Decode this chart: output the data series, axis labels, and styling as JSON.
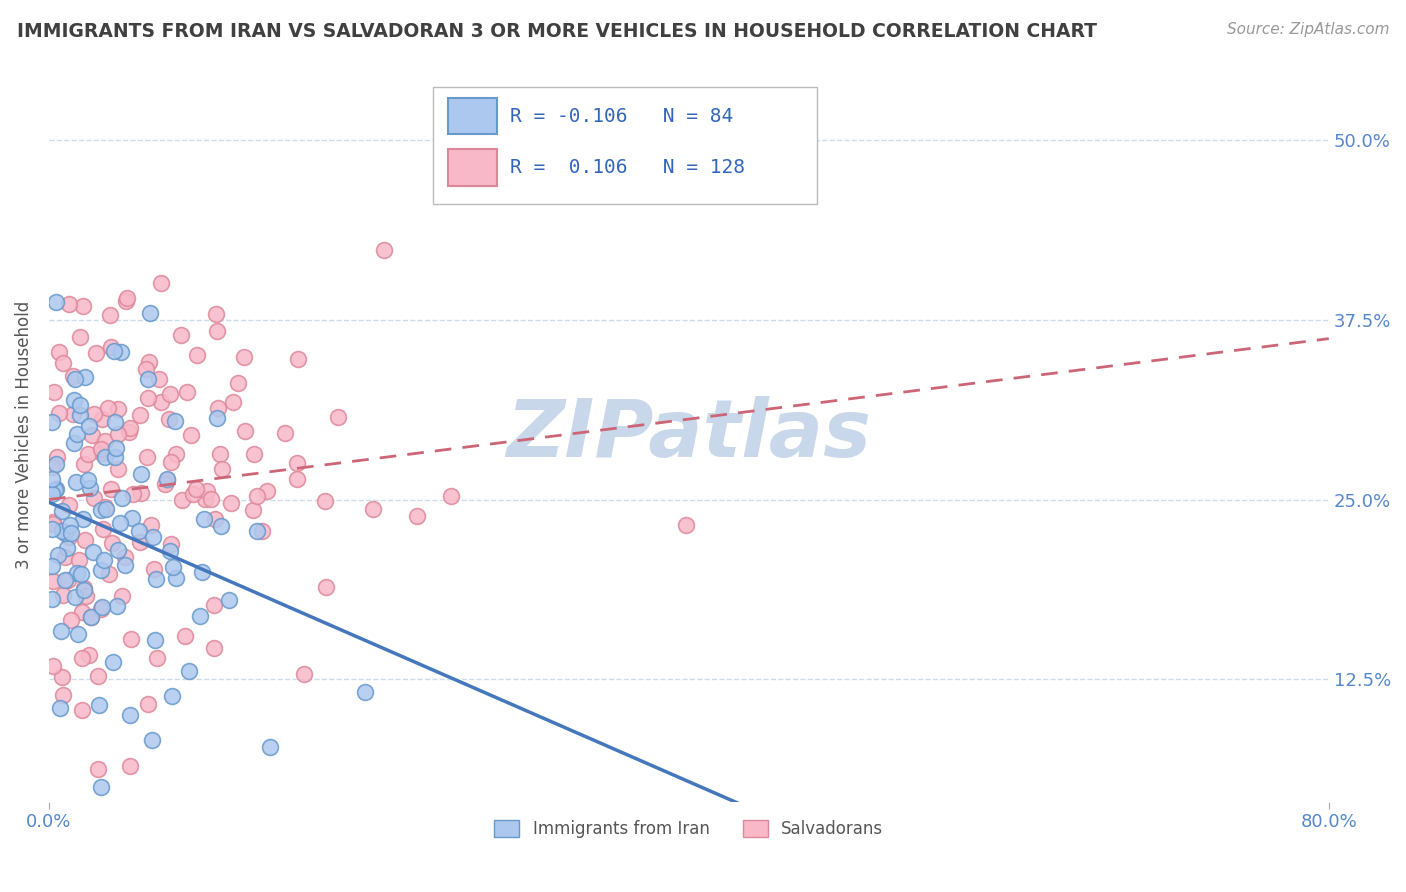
{
  "title": "IMMIGRANTS FROM IRAN VS SALVADORAN 3 OR MORE VEHICLES IN HOUSEHOLD CORRELATION CHART",
  "source_text": "Source: ZipAtlas.com",
  "ylabel": "3 or more Vehicles in Household",
  "xlim": [
    0.0,
    0.8
  ],
  "ylim": [
    0.04,
    0.55
  ],
  "ytick_values": [
    0.125,
    0.25,
    0.375,
    0.5
  ],
  "series": [
    {
      "name": "Immigrants from Iran",
      "R": -0.106,
      "N": 84,
      "face_color": "#adc8ee",
      "edge_color": "#6699cc",
      "trend_color": "#4477bb",
      "trend_dashed": false
    },
    {
      "name": "Salvadorans",
      "R": 0.106,
      "N": 128,
      "face_color": "#f8b8c8",
      "edge_color": "#dd8899",
      "trend_color": "#cc6677",
      "trend_dashed": true
    }
  ],
  "watermark": "ZIPatlas",
  "watermark_color": "#c8d8ea",
  "background_color": "#ffffff",
  "title_color": "#404040",
  "axis_label_color": "#5588cc",
  "legend_R_color": "#3366bb",
  "grid_color": "#ccddee",
  "iran_seed": 10,
  "salv_seed": 20
}
